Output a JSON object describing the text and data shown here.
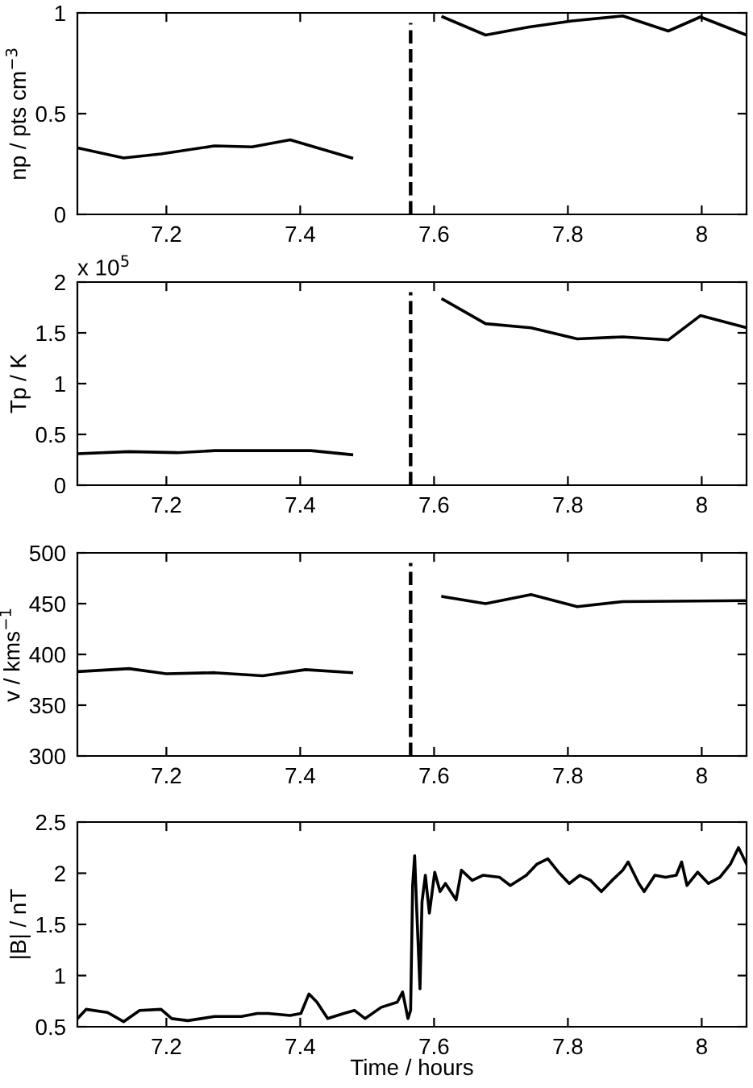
{
  "chart_data": [
    {
      "type": "line",
      "ylabel": "np / pts cm$^{−3}$",
      "xlim": [
        7.067,
        8.067
      ],
      "xticks": [
        7.2,
        7.4,
        7.6,
        7.8,
        8
      ],
      "ylim": [
        0,
        1
      ],
      "yticks": [
        0,
        0.5,
        1
      ],
      "marker": "none",
      "line_style": "solid",
      "ref_lines": [
        {
          "axis": "x",
          "value": 7.565,
          "label": null,
          "color": "#000000",
          "line_style": "dashed"
        }
      ],
      "series": [
        {
          "color": "#000000",
          "x": [
            7.067,
            7.136,
            7.192,
            7.272,
            7.328,
            7.385,
            7.477
          ],
          "values": [
            0.33,
            0.28,
            0.3,
            0.34,
            0.335,
            0.37,
            0.28
          ]
        },
        {
          "color": "#000000",
          "x": [
            7.613,
            7.677,
            7.742,
            7.806,
            7.882,
            7.95,
            7.998,
            8.067
          ],
          "values": [
            0.98,
            0.89,
            0.93,
            0.96,
            0.985,
            0.91,
            0.98,
            0.89
          ]
        }
      ]
    },
    {
      "type": "line",
      "ylabel": "Tp / K",
      "annotations": [
        "x 10$^{5}$"
      ],
      "xlim": [
        7.067,
        8.067
      ],
      "xticks": [
        7.2,
        7.4,
        7.6,
        7.8,
        8
      ],
      "ylim": [
        0,
        2
      ],
      "yticks": [
        0,
        0.5,
        1,
        1.5,
        2
      ],
      "marker": "none",
      "line_style": "solid",
      "ref_lines": [
        {
          "axis": "x",
          "value": 7.565,
          "label": null,
          "color": "#000000",
          "line_style": "dashed"
        }
      ],
      "series": [
        {
          "color": "#000000",
          "x": [
            7.067,
            7.144,
            7.216,
            7.272,
            7.416,
            7.477
          ],
          "values": [
            0.31,
            0.33,
            0.32,
            0.34,
            0.34,
            0.3
          ]
        },
        {
          "color": "#000000",
          "x": [
            7.613,
            7.677,
            7.745,
            7.814,
            7.882,
            7.95,
            7.998,
            8.067
          ],
          "values": [
            1.83,
            1.59,
            1.55,
            1.44,
            1.46,
            1.43,
            1.67,
            1.55
          ]
        }
      ]
    },
    {
      "type": "line",
      "ylabel": "v / kms$^{−1}$",
      "xlim": [
        7.067,
        8.067
      ],
      "xticks": [
        7.2,
        7.4,
        7.6,
        7.8,
        8
      ],
      "ylim": [
        300,
        500
      ],
      "yticks": [
        300,
        350,
        400,
        450,
        500
      ],
      "marker": "none",
      "line_style": "solid",
      "ref_lines": [
        {
          "axis": "x",
          "value": 7.565,
          "label": null,
          "color": "#000000",
          "line_style": "dashed"
        }
      ],
      "series": [
        {
          "color": "#000000",
          "x": [
            7.067,
            7.144,
            7.2,
            7.272,
            7.344,
            7.408,
            7.477
          ],
          "values": [
            383,
            386,
            381,
            382,
            379,
            385,
            382
          ]
        },
        {
          "color": "#000000",
          "x": [
            7.613,
            7.677,
            7.745,
            7.814,
            7.882,
            8.067
          ],
          "values": [
            457,
            450,
            459,
            447,
            452,
            453
          ]
        }
      ]
    },
    {
      "type": "line",
      "ylabel": "|B| / nT",
      "xlabel": "Time / hours",
      "xlim": [
        7.067,
        8.067
      ],
      "xticks": [
        7.2,
        7.4,
        7.6,
        7.8,
        8
      ],
      "ylim": [
        0.5,
        2.5
      ],
      "yticks": [
        0.5,
        1,
        1.5,
        2,
        2.5
      ],
      "marker": "none",
      "line_style": "solid",
      "series": [
        {
          "color": "#000000",
          "x": [
            7.067,
            7.08,
            7.112,
            7.136,
            7.16,
            7.192,
            7.208,
            7.232,
            7.272,
            7.312,
            7.336,
            7.352,
            7.385,
            7.401,
            7.413,
            7.425,
            7.441,
            7.465,
            7.481,
            7.497,
            7.521,
            7.545,
            7.553,
            7.561,
            7.565,
            7.568,
            7.571,
            7.574,
            7.579,
            7.582,
            7.587,
            7.593,
            7.601,
            7.609,
            7.617,
            7.633,
            7.641,
            7.657,
            7.673,
            7.698,
            7.714,
            7.738,
            7.754,
            7.77,
            7.786,
            7.802,
            7.818,
            7.834,
            7.85,
            7.866,
            7.882,
            7.89,
            7.906,
            7.914,
            7.93,
            7.946,
            7.962,
            7.97,
            7.978,
            7.994,
            8.01,
            8.027,
            8.043,
            8.055,
            8.067
          ],
          "values": [
            0.58,
            0.67,
            0.64,
            0.55,
            0.66,
            0.67,
            0.58,
            0.56,
            0.6,
            0.6,
            0.63,
            0.63,
            0.61,
            0.63,
            0.82,
            0.74,
            0.58,
            0.63,
            0.66,
            0.58,
            0.69,
            0.74,
            0.84,
            0.58,
            0.66,
            1.88,
            2.17,
            1.66,
            0.87,
            1.72,
            1.98,
            1.61,
            2.01,
            1.82,
            1.9,
            1.74,
            2.03,
            1.93,
            1.98,
            1.96,
            1.88,
            1.98,
            2.09,
            2.14,
            2.01,
            1.9,
            1.98,
            1.93,
            1.82,
            1.93,
            2.03,
            2.11,
            1.9,
            1.82,
            1.98,
            1.96,
            1.98,
            2.11,
            1.88,
            2.01,
            1.9,
            1.96,
            2.09,
            2.25,
            2.09
          ]
        }
      ]
    }
  ]
}
